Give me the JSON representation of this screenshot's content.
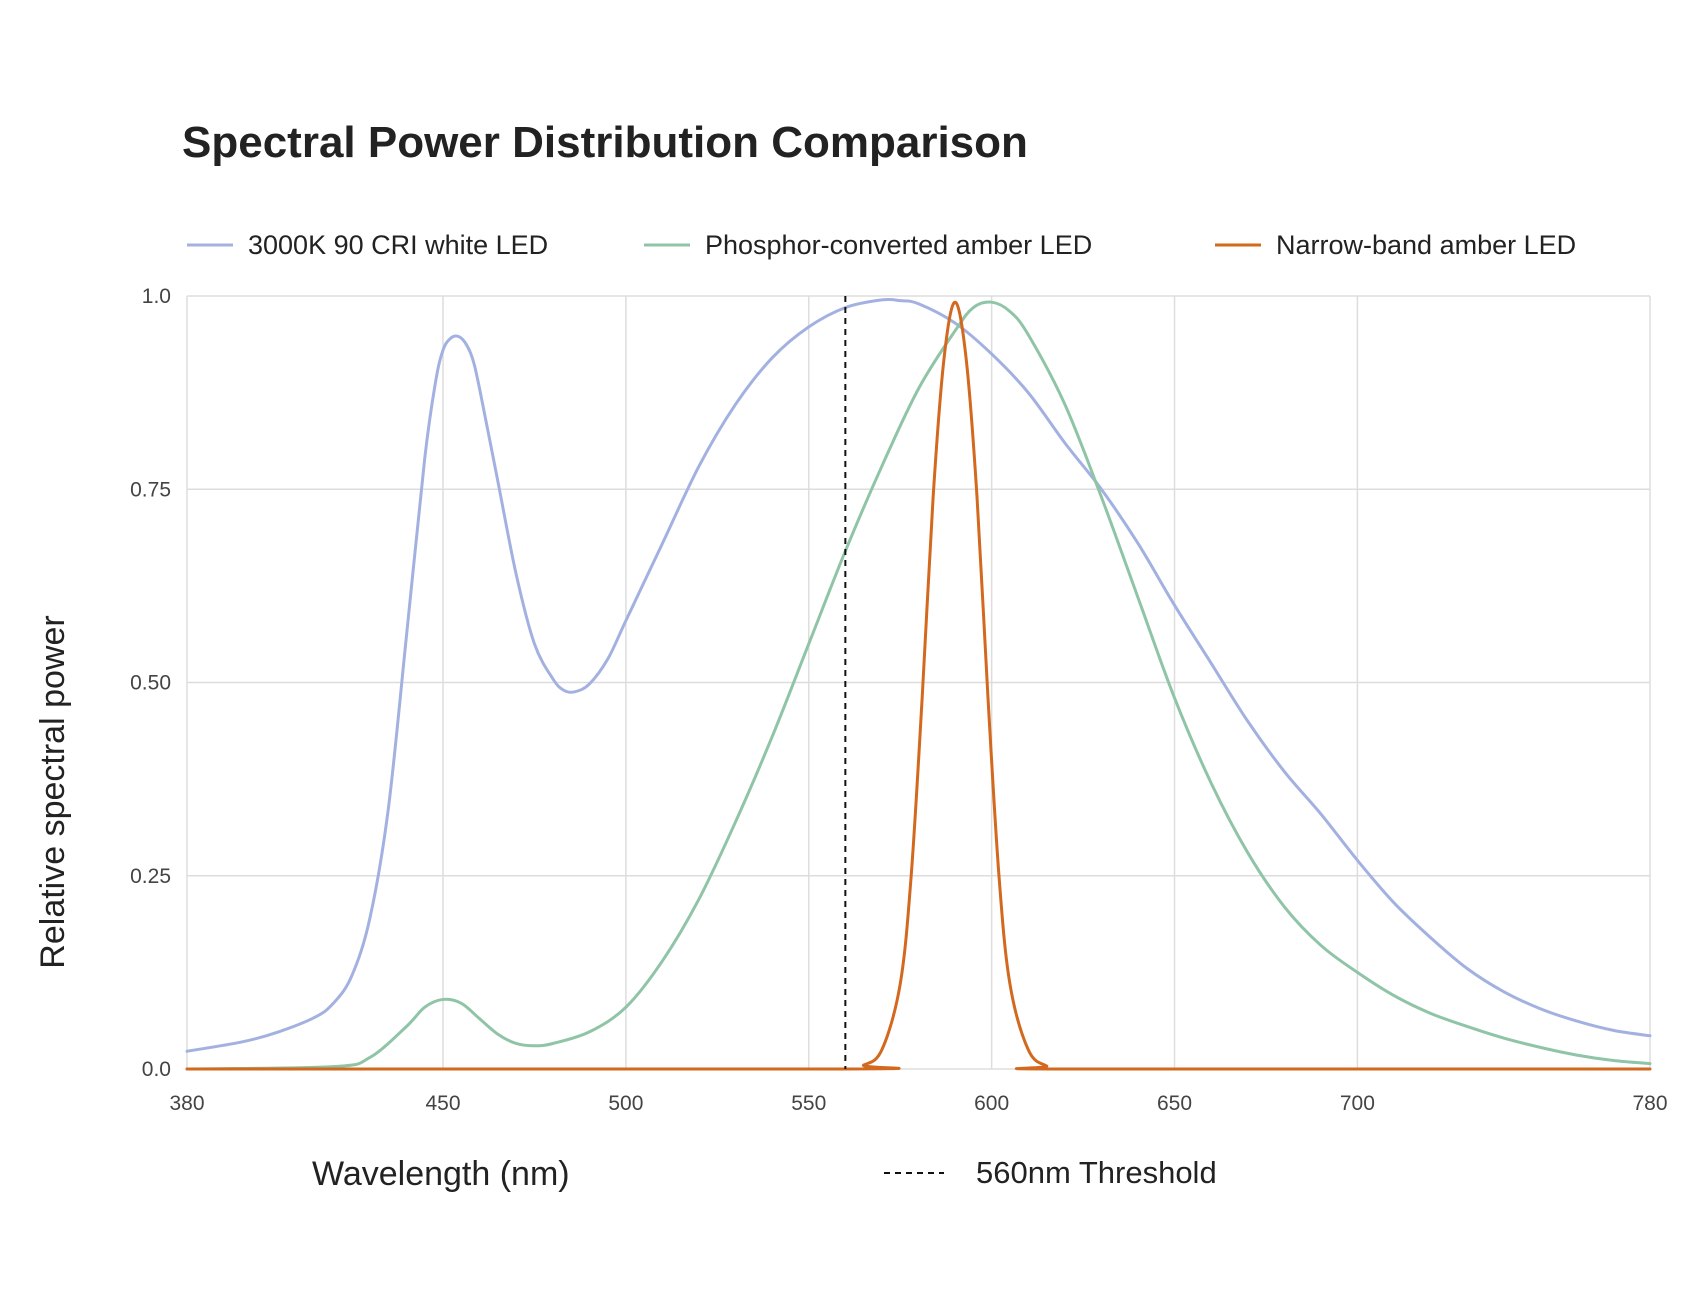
{
  "chart_data": {
    "type": "line",
    "title": "Spectral Power Distribution Comparison",
    "xlabel": "Wavelength (nm)",
    "ylabel": "Relative spectral power",
    "xlim": [
      380,
      780
    ],
    "ylim": [
      0,
      1
    ],
    "xticks": [
      380,
      450,
      500,
      550,
      600,
      650,
      700,
      780
    ],
    "yticks": [
      0,
      0.25,
      0.5,
      0.75,
      1.0
    ],
    "xtick_labels": [
      "380",
      "450",
      "500",
      "550",
      "600",
      "650",
      "700",
      "780"
    ],
    "ytick_labels": [
      "0.0",
      "0.25",
      "0.50",
      "0.75",
      "1.0"
    ],
    "grid": true,
    "legend_position": "top",
    "series": [
      {
        "name": "3000K 90 CRI white LED",
        "color": "#a3b1e1",
        "points": [
          [
            380,
            0.023
          ],
          [
            395,
            0.035
          ],
          [
            405,
            0.048
          ],
          [
            415,
            0.067
          ],
          [
            420,
            0.085
          ],
          [
            425,
            0.12
          ],
          [
            430,
            0.195
          ],
          [
            435,
            0.335
          ],
          [
            440,
            0.56
          ],
          [
            445,
            0.79
          ],
          [
            448,
            0.89
          ],
          [
            450,
            0.93
          ],
          [
            452,
            0.945
          ],
          [
            454,
            0.948
          ],
          [
            456,
            0.94
          ],
          [
            458,
            0.92
          ],
          [
            460,
            0.88
          ],
          [
            465,
            0.76
          ],
          [
            470,
            0.64
          ],
          [
            475,
            0.55
          ],
          [
            480,
            0.505
          ],
          [
            483,
            0.49
          ],
          [
            486,
            0.488
          ],
          [
            490,
            0.498
          ],
          [
            495,
            0.53
          ],
          [
            500,
            0.58
          ],
          [
            510,
            0.68
          ],
          [
            520,
            0.78
          ],
          [
            530,
            0.86
          ],
          [
            540,
            0.92
          ],
          [
            550,
            0.96
          ],
          [
            560,
            0.985
          ],
          [
            570,
            0.995
          ],
          [
            575,
            0.994
          ],
          [
            580,
            0.99
          ],
          [
            590,
            0.965
          ],
          [
            600,
            0.925
          ],
          [
            610,
            0.875
          ],
          [
            620,
            0.81
          ],
          [
            630,
            0.75
          ],
          [
            640,
            0.68
          ],
          [
            650,
            0.6
          ],
          [
            660,
            0.525
          ],
          [
            670,
            0.45
          ],
          [
            680,
            0.385
          ],
          [
            690,
            0.33
          ],
          [
            700,
            0.27
          ],
          [
            710,
            0.215
          ],
          [
            720,
            0.17
          ],
          [
            730,
            0.13
          ],
          [
            740,
            0.1
          ],
          [
            750,
            0.078
          ],
          [
            760,
            0.062
          ],
          [
            770,
            0.05
          ],
          [
            780,
            0.043
          ]
        ]
      },
      {
        "name": "Phosphor-converted amber LED",
        "color": "#8fc4a7",
        "points": [
          [
            380,
            0.0
          ],
          [
            420,
            0.003
          ],
          [
            430,
            0.015
          ],
          [
            440,
            0.055
          ],
          [
            445,
            0.08
          ],
          [
            450,
            0.09
          ],
          [
            455,
            0.085
          ],
          [
            460,
            0.065
          ],
          [
            465,
            0.045
          ],
          [
            470,
            0.033
          ],
          [
            475,
            0.03
          ],
          [
            480,
            0.033
          ],
          [
            490,
            0.048
          ],
          [
            500,
            0.08
          ],
          [
            510,
            0.14
          ],
          [
            520,
            0.22
          ],
          [
            530,
            0.32
          ],
          [
            540,
            0.43
          ],
          [
            550,
            0.55
          ],
          [
            560,
            0.67
          ],
          [
            570,
            0.78
          ],
          [
            580,
            0.88
          ],
          [
            590,
            0.955
          ],
          [
            595,
            0.985
          ],
          [
            600,
            0.992
          ],
          [
            605,
            0.98
          ],
          [
            610,
            0.95
          ],
          [
            620,
            0.86
          ],
          [
            630,
            0.74
          ],
          [
            640,
            0.61
          ],
          [
            650,
            0.48
          ],
          [
            660,
            0.37
          ],
          [
            670,
            0.28
          ],
          [
            680,
            0.21
          ],
          [
            690,
            0.16
          ],
          [
            700,
            0.125
          ],
          [
            710,
            0.095
          ],
          [
            720,
            0.072
          ],
          [
            730,
            0.055
          ],
          [
            740,
            0.04
          ],
          [
            750,
            0.028
          ],
          [
            760,
            0.018
          ],
          [
            770,
            0.011
          ],
          [
            780,
            0.007
          ]
        ]
      },
      {
        "name": "Narrow-band amber LED",
        "color": "#d2691e",
        "points": [
          [
            380,
            0.0
          ],
          [
            560,
            0.0
          ],
          [
            565,
            0.005
          ],
          [
            570,
            0.025
          ],
          [
            575,
            0.11
          ],
          [
            578,
            0.25
          ],
          [
            581,
            0.48
          ],
          [
            584,
            0.74
          ],
          [
            587,
            0.92
          ],
          [
            590,
            0.992
          ],
          [
            593,
            0.92
          ],
          [
            596,
            0.74
          ],
          [
            599,
            0.48
          ],
          [
            602,
            0.25
          ],
          [
            605,
            0.11
          ],
          [
            610,
            0.025
          ],
          [
            615,
            0.004
          ],
          [
            620,
            0.0
          ],
          [
            780,
            0.0
          ]
        ]
      }
    ],
    "annotations": [
      {
        "type": "vline",
        "x": 560,
        "style": "dashed",
        "color": "#111111",
        "label": "560nm Threshold"
      }
    ]
  }
}
